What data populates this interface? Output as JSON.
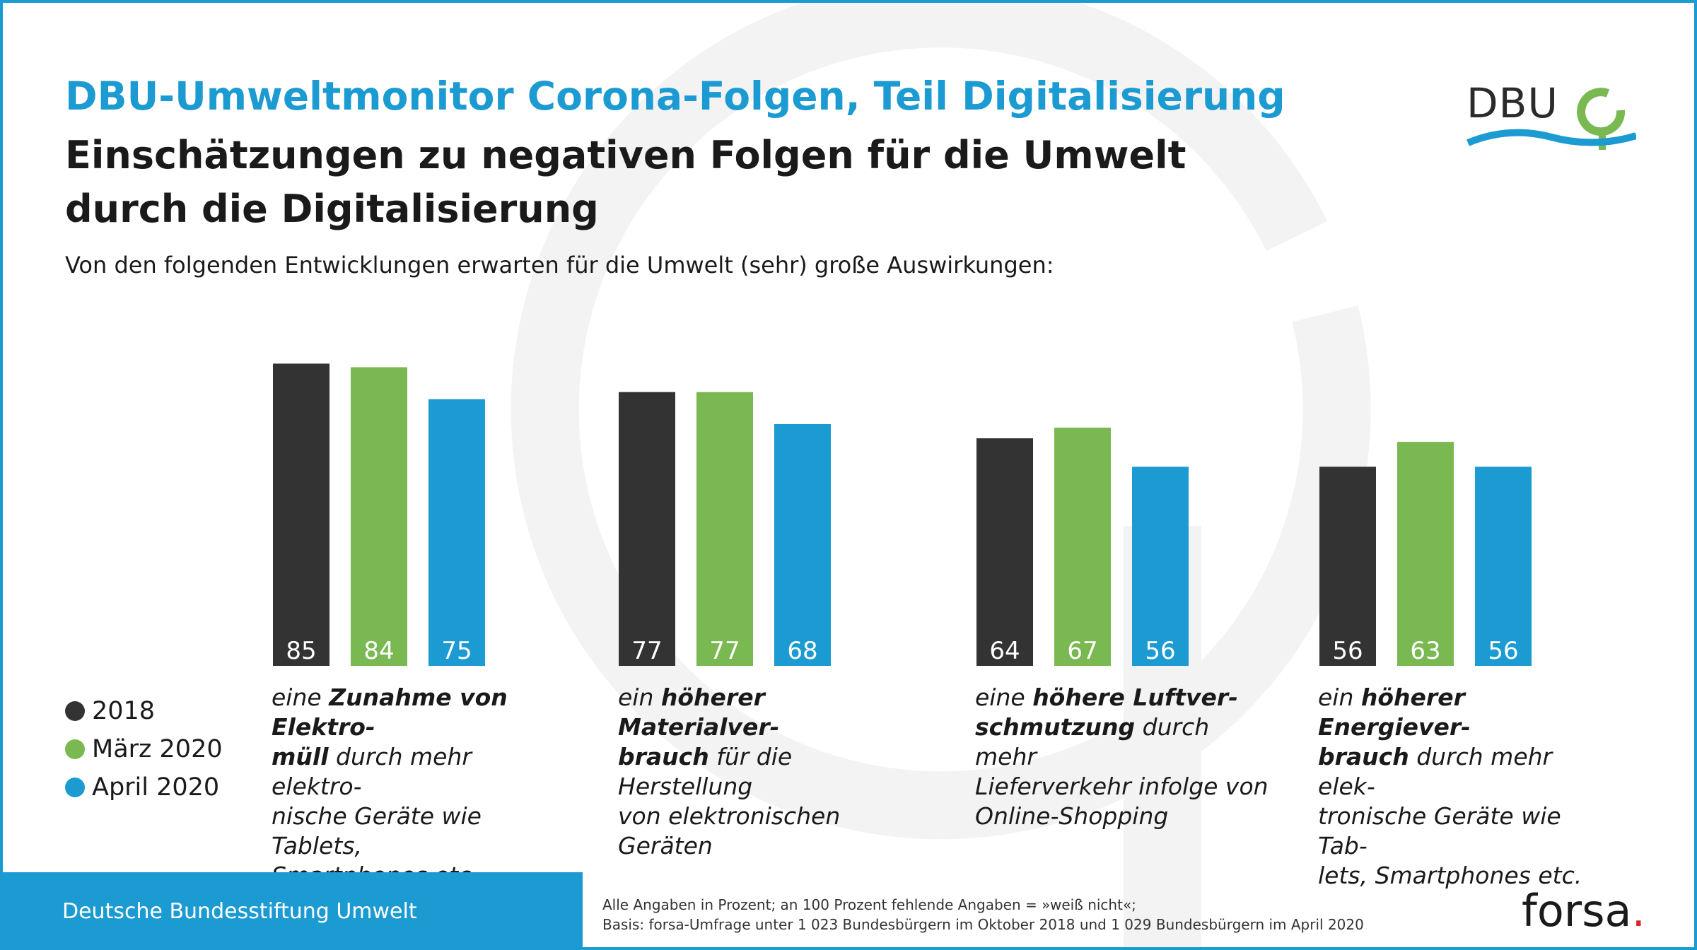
{
  "header": {
    "title": "DBU-Umweltmonitor Corona-Folgen, Teil Digitalisierung",
    "subtitle_line1": "Einschätzungen zu negativen Folgen für die Umwelt",
    "subtitle_line2": "durch die Digitalisierung",
    "question": "Von den folgenden Entwicklungen erwarten für die Umwelt (sehr) große Auswirkungen:"
  },
  "logo": {
    "text": "DBU",
    "icon": "dbu-leaf-wave-logo"
  },
  "colors": {
    "accent": "#1b9bd1",
    "series_2018": "#333333",
    "series_maerz": "#7ab851",
    "series_april": "#1b9bd1"
  },
  "chart_data": {
    "type": "bar",
    "title": "",
    "xlabel": "",
    "ylabel": "",
    "ylim": [
      0,
      100
    ],
    "grid": false,
    "legend_position": "bottom-left",
    "categories": [
      {
        "pre": "eine ",
        "bold": "Zunahme von Elektro-\nmüll",
        "post": " durch mehr elektro-\nnische Geräte wie Tablets,\nSmartphones etc."
      },
      {
        "pre": "ein ",
        "bold": "höherer Materialver-\nbrauch",
        "post": " für die Herstellung\nvon elektronischen Geräten"
      },
      {
        "pre": "eine ",
        "bold": "höhere Luftver-\nschmutzung",
        "post": " durch mehr\nLieferverkehr infolge von\nOnline-Shopping"
      },
      {
        "pre": "ein ",
        "bold": "höherer Energiever-\nbrauch",
        "post": " durch mehr elek-\ntronische Geräte wie Tab-\nlets, Smartphones etc."
      }
    ],
    "series": [
      {
        "name": "2018",
        "color": "#333333",
        "values": [
          85,
          77,
          64,
          56
        ]
      },
      {
        "name": "März 2020",
        "color": "#7ab851",
        "values": [
          84,
          77,
          67,
          63
        ]
      },
      {
        "name": "April 2020",
        "color": "#1b9bd1",
        "values": [
          75,
          68,
          56,
          56
        ]
      }
    ]
  },
  "footer": {
    "org": "Deutsche Bundesstiftung Umwelt",
    "note1": "Alle Angaben in Prozent; an 100 Prozent fehlende Angaben = »weiß nicht«;",
    "note2": "Basis: forsa-Umfrage unter 1 023 Bundesbürgern im Oktober 2018 und 1 029 Bundesbürgern im April 2020",
    "brand": "forsa",
    "brand_dot": "."
  }
}
